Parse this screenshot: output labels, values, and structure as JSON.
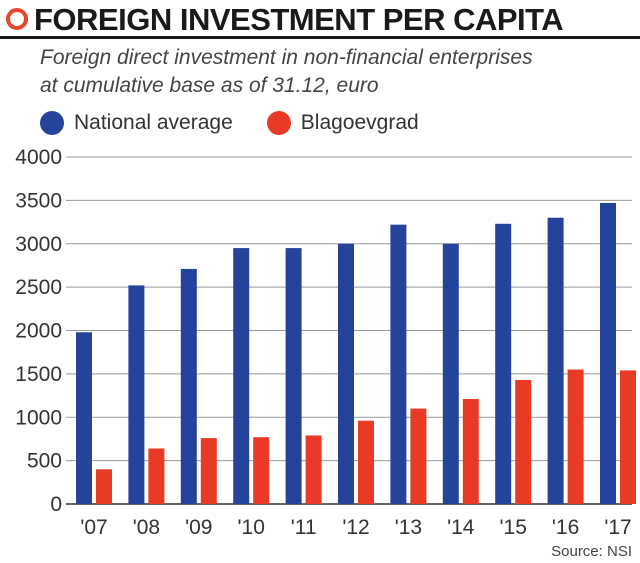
{
  "header": {
    "title": "FOREIGN INVESTMENT PER CAPITA",
    "subtitle_line1": "Foreign direct investment in non-financial enterprises",
    "subtitle_line2": "at cumulative base as of 31.12, euro"
  },
  "source": "Source: NSI",
  "colors": {
    "national": "#24449c",
    "blagoevgrad": "#e83a24",
    "grid": "#999999",
    "accent": "#e8452c"
  },
  "chart_data": {
    "type": "bar",
    "title": "FOREIGN INVESTMENT PER CAPITA",
    "categories": [
      "'07",
      "'08",
      "'09",
      "'10",
      "'11",
      "'12",
      "'13",
      "'14",
      "'15",
      "'16",
      "'17"
    ],
    "series": [
      {
        "name": "National average",
        "values": [
          1980,
          2520,
          2710,
          2950,
          2950,
          3000,
          3220,
          3000,
          3230,
          3300,
          3470
        ]
      },
      {
        "name": "Blagoevgrad",
        "values": [
          400,
          640,
          760,
          770,
          790,
          960,
          1100,
          1210,
          1430,
          1550,
          1540
        ]
      }
    ],
    "yticks": [
      0,
      500,
      1000,
      1500,
      2000,
      2500,
      3000,
      3500,
      4000
    ],
    "ylim": [
      0,
      4000
    ],
    "xlabel": "",
    "ylabel": "",
    "grid": true,
    "legend": "top-left"
  }
}
